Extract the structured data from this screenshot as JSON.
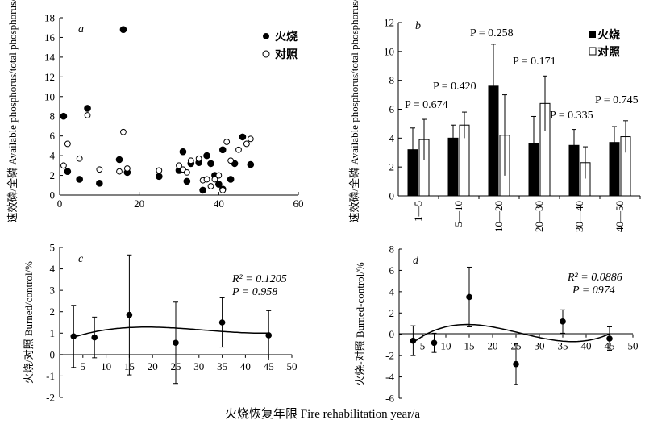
{
  "shared_xlabel": "火烧恢复年限 Fire rehabilitation year/a",
  "chart_data": [
    {
      "type": "scatter",
      "panel": "a",
      "ylabel": "速效磷/全磷 Available phosphorus/total phosphorus/%",
      "xlim": [
        0,
        60
      ],
      "ylim": [
        0,
        18
      ],
      "xticks": [
        "0",
        "20",
        "40",
        "60"
      ],
      "yticks": [
        "0",
        "2",
        "4",
        "6",
        "8",
        "10",
        "12",
        "14",
        "16",
        "18"
      ],
      "legend": [
        "火烧",
        "对照"
      ],
      "series": [
        {
          "name": "火烧",
          "marker": "filled-circle",
          "x": [
            1,
            2,
            5,
            7,
            10,
            15,
            16,
            17,
            25,
            30,
            31,
            32,
            33,
            35,
            36,
            37,
            38,
            39,
            40,
            41,
            41,
            43,
            44,
            46,
            48
          ],
          "y": [
            8.0,
            2.4,
            1.6,
            8.8,
            1.2,
            3.6,
            16.8,
            2.3,
            1.9,
            2.5,
            4.4,
            1.4,
            3.2,
            3.3,
            0.5,
            4.0,
            3.2,
            2.0,
            1.1,
            0.6,
            4.6,
            1.6,
            3.2,
            5.9,
            3.1
          ]
        },
        {
          "name": "对照",
          "marker": "open-circle",
          "x": [
            1,
            2,
            5,
            7,
            10,
            15,
            16,
            17,
            25,
            30,
            31,
            32,
            33,
            35,
            36,
            37,
            38,
            39,
            40,
            41,
            42,
            43,
            45,
            47,
            48
          ],
          "y": [
            3.0,
            5.2,
            3.7,
            8.1,
            2.6,
            2.4,
            6.4,
            2.7,
            2.5,
            3.0,
            2.6,
            2.3,
            3.5,
            3.7,
            1.5,
            1.6,
            0.9,
            1.6,
            2.0,
            0.5,
            5.4,
            3.5,
            4.6,
            5.2,
            5.7
          ]
        }
      ]
    },
    {
      "type": "bar",
      "panel": "b",
      "ylabel": "速效磷/全磷 Available phosphorus/total phosphorus/%",
      "ylim": [
        0,
        12
      ],
      "yticks": [
        "0",
        "2",
        "4",
        "6",
        "8",
        "10",
        "12"
      ],
      "categories": [
        "1—5",
        "5—10",
        "10—20",
        "20—30",
        "30—40",
        "40—50"
      ],
      "legend": [
        "火烧",
        "对照"
      ],
      "series": [
        {
          "name": "火烧",
          "fill": "#000000",
          "values": [
            3.2,
            4.0,
            7.6,
            3.6,
            3.5,
            3.7
          ],
          "errors": [
            1.5,
            0.9,
            2.9,
            1.9,
            1.1,
            1.1
          ]
        },
        {
          "name": "对照",
          "fill": "#ffffff",
          "values": [
            3.9,
            4.9,
            4.2,
            6.4,
            2.3,
            4.1
          ],
          "errors": [
            1.4,
            0.9,
            2.8,
            1.9,
            1.1,
            1.1
          ]
        }
      ],
      "annotations": [
        "P = 0.674",
        "P = 0.420",
        "P = 0.258",
        "P = 0.171",
        "P = 0.335",
        "P = 0.745"
      ]
    },
    {
      "type": "line",
      "panel": "c",
      "ylabel": "火烧/对照 Burned/control/%",
      "xlim": [
        0,
        50
      ],
      "ylim": [
        -2,
        5
      ],
      "xticks": [
        "5",
        "10",
        "15",
        "20",
        "25",
        "30",
        "35",
        "40",
        "45",
        "50"
      ],
      "yticks": [
        "-2",
        "-1",
        "0",
        "1",
        "2",
        "3",
        "4",
        "5"
      ],
      "points": {
        "x": [
          3,
          7.5,
          15,
          25,
          35,
          45
        ],
        "y": [
          0.85,
          0.8,
          1.85,
          0.55,
          1.5,
          0.9
        ],
        "errors": [
          1.45,
          0.95,
          2.8,
          1.9,
          1.15,
          1.15
        ]
      },
      "fit": {
        "type": "polynomial",
        "r2_label": "R² = 0.1205",
        "p_label": "P = 0.958"
      }
    },
    {
      "type": "line",
      "panel": "d",
      "ylabel": "火烧-对照 Burned-control/%",
      "xlim": [
        0,
        50
      ],
      "ylim": [
        -6,
        8
      ],
      "xticks": [
        "5",
        "10",
        "15",
        "20",
        "25",
        "30",
        "35",
        "40",
        "45",
        "50"
      ],
      "yticks": [
        "-6",
        "-4",
        "-2",
        "0",
        "2",
        "4",
        "6",
        "8"
      ],
      "points": {
        "x": [
          3,
          7.5,
          15,
          25,
          35,
          45
        ],
        "y": [
          -0.6,
          -0.8,
          3.5,
          -2.8,
          1.2,
          -0.4
        ],
        "errors": [
          1.4,
          0.9,
          2.8,
          1.9,
          1.1,
          1.1
        ]
      },
      "fit": {
        "type": "polynomial",
        "r2_label": "R² = 0.0886",
        "p_label": "P = 0974"
      }
    }
  ]
}
